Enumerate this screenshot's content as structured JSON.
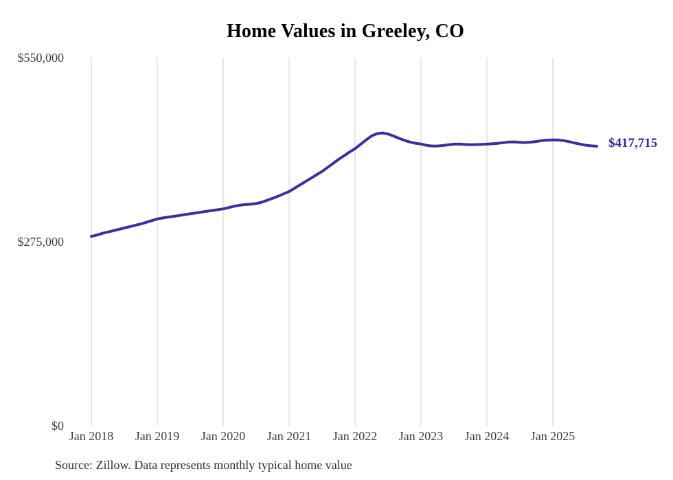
{
  "chart_data": {
    "type": "line",
    "title": "Home Values in Greeley, CO",
    "source_note": "Source: Zillow. Data represents monthly typical home value",
    "series_name": "Typical home value",
    "unit": "USD",
    "ylim": [
      0,
      550000
    ],
    "grid": "vertical-year-lines",
    "legend": "none",
    "end_label": "$417,715",
    "x_ticks": [
      "Jan 2018",
      "Jan 2019",
      "Jan 2020",
      "Jan 2021",
      "Jan 2022",
      "Jan 2023",
      "Jan 2024",
      "Jan 2025"
    ],
    "y_ticks": [
      {
        "label": "$0",
        "value": 0
      },
      {
        "label": "$275,000",
        "value": 275000
      },
      {
        "label": "$550,000",
        "value": 550000
      }
    ],
    "x": [
      "2018-01",
      "2018-02",
      "2018-03",
      "2018-04",
      "2018-05",
      "2018-06",
      "2018-07",
      "2018-08",
      "2018-09",
      "2018-10",
      "2018-11",
      "2018-12",
      "2019-01",
      "2019-02",
      "2019-03",
      "2019-04",
      "2019-05",
      "2019-06",
      "2019-07",
      "2019-08",
      "2019-09",
      "2019-10",
      "2019-11",
      "2019-12",
      "2020-01",
      "2020-02",
      "2020-03",
      "2020-04",
      "2020-05",
      "2020-06",
      "2020-07",
      "2020-08",
      "2020-09",
      "2020-10",
      "2020-11",
      "2020-12",
      "2021-01",
      "2021-02",
      "2021-03",
      "2021-04",
      "2021-05",
      "2021-06",
      "2021-07",
      "2021-08",
      "2021-09",
      "2021-10",
      "2021-11",
      "2021-12",
      "2022-01",
      "2022-02",
      "2022-03",
      "2022-04",
      "2022-05",
      "2022-06",
      "2022-07",
      "2022-08",
      "2022-09",
      "2022-10",
      "2022-11",
      "2022-12",
      "2023-01",
      "2023-02",
      "2023-03",
      "2023-04",
      "2023-05",
      "2023-06",
      "2023-07",
      "2023-08",
      "2023-09",
      "2023-10",
      "2023-11",
      "2023-12",
      "2024-01",
      "2024-02",
      "2024-03",
      "2024-04",
      "2024-05",
      "2024-06",
      "2024-07",
      "2024-08",
      "2024-09",
      "2024-10",
      "2024-11",
      "2024-12",
      "2025-01",
      "2025-02",
      "2025-03",
      "2025-04",
      "2025-05",
      "2025-06",
      "2025-07",
      "2025-08",
      "2025-09"
    ],
    "values": [
      283000,
      285000,
      287500,
      289500,
      291500,
      293500,
      295500,
      297500,
      299500,
      301500,
      304000,
      306500,
      309000,
      310500,
      311800,
      313000,
      314200,
      315500,
      316800,
      318000,
      319200,
      320500,
      321700,
      322800,
      324000,
      326000,
      328000,
      329500,
      330500,
      331000,
      332000,
      334000,
      337000,
      340000,
      343000,
      346500,
      350000,
      355000,
      360000,
      365000,
      370000,
      375000,
      380000,
      386000,
      392000,
      398000,
      403500,
      409000,
      414000,
      420500,
      427000,
      433000,
      436500,
      437500,
      436000,
      433000,
      429500,
      426500,
      424000,
      422000,
      421000,
      419000,
      418000,
      418000,
      418800,
      419800,
      420800,
      421000,
      420300,
      420000,
      420200,
      420500,
      421000,
      421300,
      422000,
      423000,
      424000,
      424200,
      423500,
      423200,
      423800,
      424800,
      426000,
      426800,
      427200,
      427000,
      426000,
      424500,
      422500,
      420800,
      419200,
      418200,
      417715
    ],
    "colors": {
      "line": "#39329b",
      "end_label": "#2d2c9e",
      "grid": "#cccccc",
      "tick_text": "#3f3f3f",
      "title_text": "#000000",
      "source_text": "#303030"
    }
  }
}
